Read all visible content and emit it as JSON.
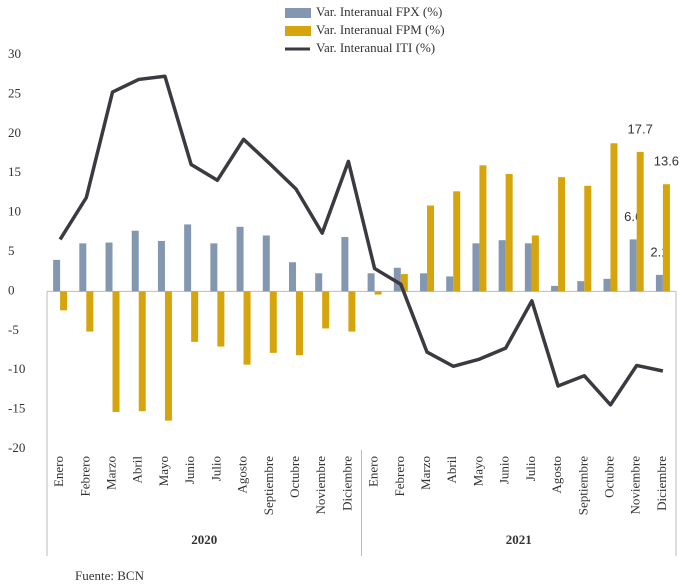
{
  "chart_data": {
    "type": "bar_line",
    "categories": [
      "Enero",
      "Febrero",
      "Marzo",
      "Abril",
      "Mayo",
      "Junio",
      "Julio",
      "Agosto",
      "Septiembre",
      "Octubre",
      "Noviembre",
      "Diciembre",
      "Enero",
      "Febrero",
      "Marzo",
      "Abril",
      "Mayo",
      "Junio",
      "Julio",
      "Agosto",
      "Septiembre",
      "Octubre",
      "Noviembre",
      "Diciembre"
    ],
    "groups": [
      "2020",
      "2021"
    ],
    "series": [
      {
        "name": "Var. Interanual FPX (%)",
        "type": "bar",
        "color": "#8497b0",
        "values": [
          4.0,
          6.1,
          6.2,
          7.7,
          6.4,
          8.5,
          6.1,
          8.2,
          7.1,
          3.7,
          2.3,
          6.9,
          2.3,
          3.0,
          2.3,
          1.9,
          6.1,
          6.5,
          6.1,
          0.7,
          1.3,
          1.6,
          6.6,
          2.1
        ],
        "value_labels": [
          null,
          null,
          null,
          null,
          null,
          null,
          null,
          null,
          null,
          null,
          null,
          null,
          null,
          null,
          null,
          null,
          null,
          null,
          null,
          null,
          null,
          null,
          "6.6",
          "2.1"
        ]
      },
      {
        "name": "Var. Interanual FPM (%)",
        "type": "bar",
        "color": "#d6a40d",
        "values": [
          -2.4,
          -5.1,
          -15.3,
          -15.2,
          -16.4,
          -6.4,
          -7.0,
          -9.3,
          -7.8,
          -8.1,
          -4.7,
          -5.1,
          -0.4,
          2.2,
          10.9,
          12.7,
          16.0,
          14.9,
          7.1,
          14.5,
          13.4,
          18.8,
          17.7,
          13.6
        ],
        "value_labels": [
          null,
          null,
          null,
          null,
          null,
          null,
          null,
          null,
          null,
          null,
          null,
          null,
          null,
          null,
          null,
          null,
          null,
          null,
          null,
          null,
          null,
          null,
          "17.7",
          "13.6"
        ]
      },
      {
        "name": "Var. Interanual ITI (%)",
        "type": "line",
        "color": "#3a3a40",
        "values": [
          6.6,
          11.9,
          25.3,
          26.9,
          27.3,
          16.1,
          14.1,
          19.3,
          16.2,
          13.0,
          7.4,
          16.5,
          2.9,
          0.9,
          -7.7,
          -9.5,
          -8.6,
          -7.2,
          -1.2,
          -12.0,
          -10.7,
          -14.4,
          -9.4,
          -10.1
        ]
      }
    ],
    "ylim": [
      -20,
      30
    ],
    "yticks": [
      -20,
      -15,
      -10,
      -5,
      0,
      5,
      10,
      15,
      20,
      25,
      30
    ],
    "source": "Fuente: BCN"
  }
}
